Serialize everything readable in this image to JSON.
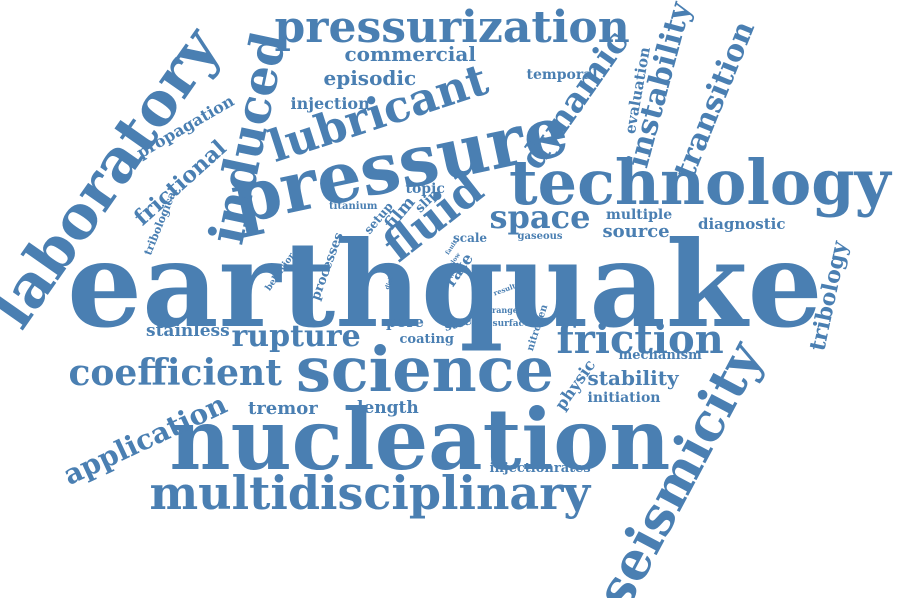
{
  "text_color": "#4a7fb2",
  "words": [
    "earthquake",
    "technology",
    "nucleation",
    "pressure",
    "science",
    "multidisciplinary",
    "seismicity",
    "laboratory",
    "pressurization",
    "lubricant",
    "induced",
    "fluid",
    "friction",
    "coefficient",
    "dynamic",
    "instability",
    "transition",
    "rupture",
    "application",
    "space",
    "frictional",
    "tribology",
    "commercial",
    "episodic",
    "propagation",
    "stability",
    "source",
    "diagnostic",
    "tremor",
    "length",
    "pore",
    "physic",
    "stainless",
    "injection",
    "evaluation",
    "temporal",
    "multiple",
    "topic",
    "mechanism",
    "initiation",
    "film",
    "slip",
    "setup",
    "rate",
    "scale",
    "coating",
    "steel",
    "tribological",
    "processes",
    "injectionrates",
    "titanium",
    "gaseous",
    "behavior",
    "nitrogen",
    "surface",
    "range",
    "result",
    "disk",
    "slow",
    "fault"
  ]
}
